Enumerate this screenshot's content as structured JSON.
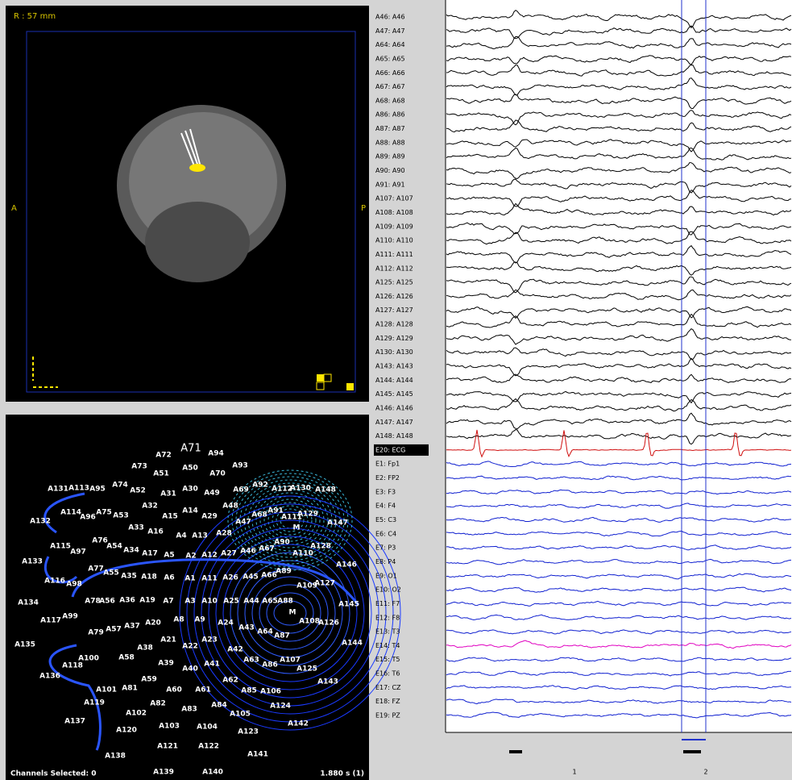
{
  "mri": {
    "distance": "R : 57 mm",
    "left": "A",
    "right": "P"
  },
  "sensor_map": {
    "title": "A71",
    "sensors": [
      "A72",
      "A94",
      "A73",
      "A51",
      "A50",
      "A70",
      "A93",
      "A74",
      "A52",
      "A31",
      "A30",
      "A49",
      "A69",
      "A92",
      "A112",
      "A130",
      "A148",
      "A131",
      "A113",
      "A95",
      "A32",
      "A14",
      "A48",
      "A68",
      "A91",
      "A111",
      "A129",
      "A114",
      "A96",
      "A75",
      "A53",
      "A15",
      "A29",
      "A47",
      "A132",
      "A147",
      "A33",
      "A16",
      "M",
      "A4",
      "A13",
      "A28",
      "A115",
      "A97",
      "A76",
      "A54",
      "A34",
      "A17",
      "A5",
      "A2",
      "A12",
      "A27",
      "A46",
      "A67",
      "A90",
      "A110",
      "A128",
      "A133",
      "A77",
      "A55",
      "A35",
      "A18",
      "A6",
      "A1",
      "A11",
      "A26",
      "A45",
      "A66",
      "A89",
      "A146",
      "A116",
      "A98",
      "A109",
      "A127",
      "A134",
      "A78",
      "A56",
      "A36",
      "A19",
      "A7",
      "A3",
      "A10",
      "A25",
      "A44",
      "A65",
      "A88",
      "A145",
      "M",
      "A117",
      "A99",
      "A79",
      "A57",
      "A37",
      "A20",
      "A8",
      "A9",
      "A24",
      "A43",
      "A64",
      "A87",
      "A108",
      "A126",
      "A135",
      "A21",
      "A22",
      "A23",
      "A38",
      "A42",
      "A144",
      "A100",
      "A118",
      "A58",
      "A39",
      "A40",
      "A41",
      "A63",
      "A86",
      "A107",
      "A125",
      "A136",
      "A59",
      "A62",
      "A143",
      "A101",
      "A81",
      "A60",
      "A61",
      "A85",
      "A106",
      "A119",
      "A82",
      "A83",
      "A84",
      "A105",
      "A124",
      "A102",
      "A137",
      "A103",
      "A104",
      "A123",
      "A142",
      "A120",
      "A121",
      "A122",
      "A141",
      "A138",
      "A139",
      "A140"
    ],
    "status": "Channels Selected: 0",
    "time": "1.880 s (1)"
  },
  "eeg": {
    "channels": [
      "A46: A46",
      "A47: A47",
      "A64: A64",
      "A65: A65",
      "A66: A66",
      "A67: A67",
      "A68: A68",
      "A86: A86",
      "A87: A87",
      "A88: A88",
      "A89: A89",
      "A90: A90",
      "A91: A91",
      "A107: A107",
      "A108: A108",
      "A109: A109",
      "A110: A110",
      "A111: A111",
      "A112: A112",
      "A125: A125",
      "A126: A126",
      "A127: A127",
      "A128: A128",
      "A129: A129",
      "A130: A130",
      "A143: A143",
      "A144: A144",
      "A145: A145",
      "A146: A146",
      "A147: A147",
      "A148: A148",
      "E20: ECG",
      "E1: Fp1",
      "E2: FP2",
      "E3: F3",
      "E4: F4",
      "E5: C3",
      "E6: C4",
      "E7: P3",
      "E8: P4",
      "E9: O1",
      "E10: O2",
      "E11: F7",
      "E12: F8",
      "E13: T3",
      "E14: T4",
      "E15: T5",
      "E16: T6",
      "E17: CZ",
      "E18: FZ",
      "E19: PZ"
    ],
    "time_ticks": [
      "1",
      "2"
    ]
  }
}
